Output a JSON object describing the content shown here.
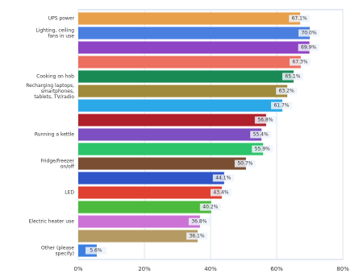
{
  "chart_data": {
    "type": "barh",
    "categories": [
      "UPS power",
      "Lighting, ceiling fans in use",
      null,
      null,
      "Cooking on hob",
      "Recharging laptops, smartphones, tablets, TV/radio",
      null,
      null,
      "Running a kettle",
      null,
      "Fridge/freezer on/off",
      null,
      "LED",
      null,
      "Electric heater use",
      null,
      "Other (please specify)"
    ],
    "values": [
      67.1,
      70.0,
      69.9,
      67.3,
      65.1,
      63.2,
      61.7,
      56.8,
      55.4,
      55.9,
      50.7,
      44.1,
      43.4,
      40.2,
      36.8,
      36.1,
      5.6
    ],
    "value_labels": [
      "67.1%",
      "70.0%",
      "69.9%",
      "67.3%",
      "65.1%",
      "63.2%",
      "61.7%",
      "56.8%",
      "55.4%",
      "55.9%",
      "50.7%",
      "44.1%",
      "43.4%",
      "40.2%",
      "36.8%",
      "36.1%",
      "5.6%"
    ],
    "colors": [
      "#e8a04a",
      "#4a7fe0",
      "#8e44c4",
      "#ec6f5f",
      "#1a8a55",
      "#a08a3c",
      "#2aa8e8",
      "#b0202a",
      "#7d4fc0",
      "#2cc46a",
      "#7a4e32",
      "#2f55c8",
      "#e0402f",
      "#4cba3c",
      "#cc72d6",
      "#b59a64",
      "#3d7fe0"
    ],
    "xlim": [
      0,
      80
    ],
    "xticks": [
      {
        "value": 0,
        "label": "0%"
      },
      {
        "value": 20,
        "label": "20%"
      },
      {
        "value": 40,
        "label": "40%"
      },
      {
        "value": 60,
        "label": "60%"
      },
      {
        "value": 80,
        "label": "80%"
      }
    ],
    "grid": true
  }
}
